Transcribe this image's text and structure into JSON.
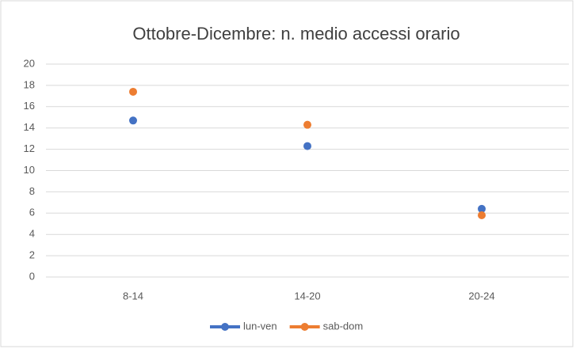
{
  "chart_data": {
    "type": "line",
    "title": "Ottobre-Dicembre: n. medio accessi orario",
    "categories": [
      "8-14",
      "14-20",
      "20-24"
    ],
    "series": [
      {
        "name": "lun-ven",
        "color": "#4472c4",
        "values": [
          14.7,
          12.3,
          6.4
        ]
      },
      {
        "name": "sab-dom",
        "color": "#ed7d31",
        "values": [
          17.4,
          14.3,
          5.8
        ]
      }
    ],
    "ylim": [
      0,
      20
    ],
    "yticks": [
      0,
      2,
      4,
      6,
      8,
      10,
      12,
      14,
      16,
      18,
      20
    ],
    "grid": true,
    "legend": "bottom"
  }
}
